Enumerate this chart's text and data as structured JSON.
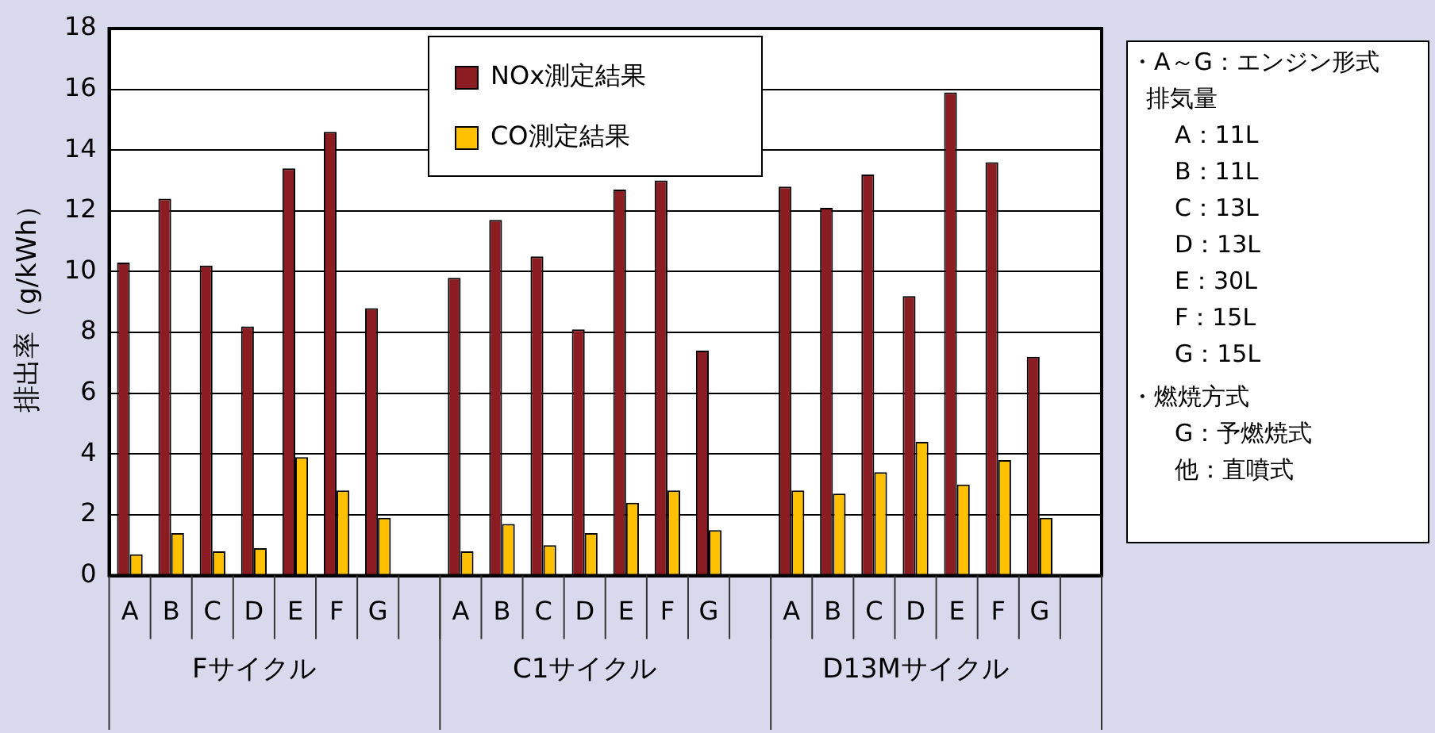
{
  "chart_data": {
    "type": "bar",
    "ylabel": "排出率（g/kWh）",
    "categories": [
      "A",
      "B",
      "C",
      "D",
      "E",
      "F",
      "G",
      null,
      "A",
      "B",
      "C",
      "D",
      "E",
      "F",
      "G",
      null,
      "A",
      "B",
      "C",
      "D",
      "E",
      "F",
      "G",
      null
    ],
    "series": [
      {
        "name": "NOx測定結果",
        "color": "#8b1c22",
        "values": [
          10.3,
          12.4,
          10.2,
          8.2,
          13.4,
          14.6,
          8.8,
          null,
          9.8,
          11.7,
          10.5,
          8.1,
          12.7,
          13.0,
          7.4,
          null,
          12.8,
          12.1,
          13.2,
          9.2,
          15.9,
          13.6,
          7.2,
          null
        ]
      },
      {
        "name": "CO測定結果",
        "color": "#ffc000",
        "values": [
          0.7,
          1.4,
          0.8,
          0.9,
          3.9,
          2.8,
          1.9,
          null,
          0.8,
          1.7,
          1.0,
          1.4,
          2.4,
          2.8,
          1.5,
          null,
          2.8,
          2.7,
          3.4,
          4.4,
          3.0,
          3.8,
          1.9,
          null
        ]
      }
    ],
    "ylim": [
      0,
      18
    ],
    "yticks": [
      0,
      2,
      4,
      6,
      8,
      10,
      12,
      14,
      16,
      18
    ],
    "grid": "y",
    "legend": "top",
    "annotations": [
      "Fサイクル",
      "C1サイクル",
      "D13Mサイクル",
      "・A～G：エンジン形式",
      "排気量",
      "A：11L",
      "B：11L",
      "C：13L",
      "D：13L",
      "E：30L",
      "F：15L",
      "G：15L",
      "・燃焼方式",
      "G：予燃焼式",
      "他：直噴式"
    ]
  }
}
